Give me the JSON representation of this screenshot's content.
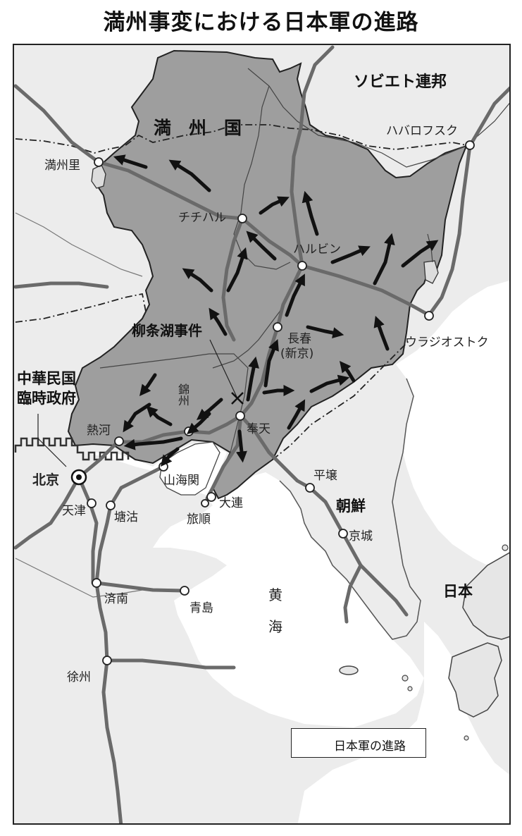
{
  "title": "満州事変における日本軍の進路",
  "regions": {
    "manchukuo": "満　州　国",
    "soviet": "ソビエト連邦",
    "roc_provisional_line1": "中華民国",
    "roc_provisional_line2": "臨時政府",
    "korea": "朝鮮",
    "japan": "日本"
  },
  "event": {
    "liutiaohu": "柳条湖事件"
  },
  "seas": {
    "yellow_sea_1": "黄",
    "yellow_sea_2": "海"
  },
  "cities": {
    "manzhouli": "満州里",
    "qiqihar": "チチハル",
    "harbin": "ハルビン",
    "khabarovsk": "ハバロフスク",
    "vladivostok": "ウラジオストク",
    "changchun_line1": "長春",
    "changchun_line2": "(新京)",
    "jinzhou": "錦州",
    "rehe": "熱河",
    "fengtian": "奉天",
    "shanhaiguan": "山海関",
    "beijing": "北京",
    "tianjin": "天津",
    "tanggu": "塘沽",
    "lushun": "旅順",
    "dalian": "大連",
    "pyongyang": "平壌",
    "keijo": "京城",
    "jinan": "済南",
    "qingdao": "青島",
    "xuzhou": "徐州"
  },
  "legend": {
    "label": "日本軍の進路",
    "symbol": "arrow"
  },
  "colors": {
    "manchukuo_fill": "#9e9e9e",
    "sea_fill": "#ffffff",
    "land_fill": "#e6e6e6",
    "railway": "#6a6a6a",
    "arrow": "#111111",
    "border": "#333333"
  }
}
